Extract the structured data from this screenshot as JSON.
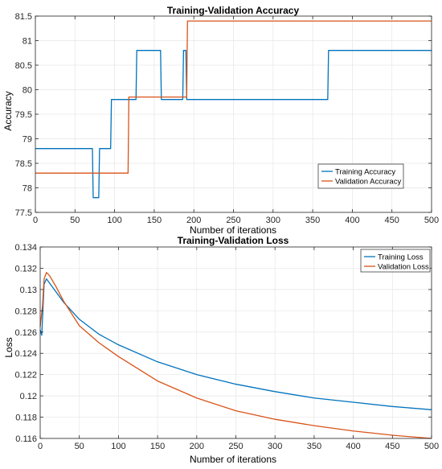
{
  "chart_data": [
    {
      "type": "line",
      "title": "Training-Validation Accuracy",
      "xlabel": "Number of iterations",
      "ylabel": "Accuracy",
      "xlim": [
        0,
        500
      ],
      "ylim": [
        77.5,
        81.5
      ],
      "xticks": [
        0,
        50,
        100,
        150,
        200,
        250,
        300,
        350,
        400,
        450,
        500
      ],
      "yticks": [
        77.5,
        78,
        78.5,
        79,
        79.5,
        80,
        80.5,
        81,
        81.5
      ],
      "ytick_labels": [
        "77.5",
        "78",
        "78.5",
        "79",
        "79.5",
        "80",
        "80.5",
        "81",
        "81.5"
      ],
      "grid": true,
      "legend_position": "lower-right",
      "series": [
        {
          "name": "Training Accuracy",
          "color": "#0072BD",
          "x": [
            0,
            72,
            73,
            80,
            81,
            95,
            96,
            127,
            128,
            158,
            159,
            186,
            187,
            190,
            191,
            369,
            370,
            500
          ],
          "y": [
            78.8,
            78.8,
            77.8,
            77.8,
            78.8,
            78.8,
            79.8,
            79.8,
            80.8,
            80.8,
            79.8,
            79.8,
            80.8,
            80.8,
            79.8,
            79.8,
            80.8,
            80.8
          ]
        },
        {
          "name": "Validation Accuracy",
          "color": "#D95319",
          "x": [
            0,
            117,
            118,
            191,
            192,
            500
          ],
          "y": [
            78.3,
            78.3,
            79.85,
            79.85,
            81.4,
            81.4
          ]
        }
      ]
    },
    {
      "type": "line",
      "title": "Training-Validation Loss",
      "xlabel": "Number of iterations",
      "ylabel": "Loss",
      "xlim": [
        0,
        500
      ],
      "ylim": [
        0.116,
        0.134
      ],
      "xticks": [
        0,
        50,
        100,
        150,
        200,
        250,
        300,
        350,
        400,
        450,
        500
      ],
      "yticks": [
        0.116,
        0.118,
        0.12,
        0.122,
        0.124,
        0.126,
        0.128,
        0.13,
        0.132,
        0.134
      ],
      "ytick_labels": [
        "0.116",
        "0.118",
        "0.12",
        "0.122",
        "0.124",
        "0.126",
        "0.128",
        "0.13",
        "0.132",
        "0.134"
      ],
      "grid": true,
      "legend_position": "top-right",
      "series": [
        {
          "name": "Training Loss",
          "color": "#0072BD",
          "x": [
            0,
            2,
            5,
            8,
            12,
            20,
            30,
            50,
            75,
            100,
            150,
            200,
            250,
            300,
            350,
            400,
            450,
            500
          ],
          "y": [
            0.1262,
            0.1257,
            0.1305,
            0.131,
            0.1306,
            0.1298,
            0.1288,
            0.1272,
            0.1258,
            0.1248,
            0.1232,
            0.122,
            0.1211,
            0.1204,
            0.1198,
            0.1194,
            0.119,
            0.1187
          ]
        },
        {
          "name": "Validation Loss",
          "color": "#D95319",
          "x": [
            0,
            3,
            5,
            8,
            12,
            20,
            30,
            50,
            75,
            100,
            150,
            200,
            250,
            300,
            350,
            400,
            450,
            500
          ],
          "y": [
            0.1265,
            0.1285,
            0.131,
            0.1316,
            0.1313,
            0.1303,
            0.1289,
            0.1266,
            0.125,
            0.1237,
            0.1214,
            0.1198,
            0.1186,
            0.1178,
            0.1172,
            0.1167,
            0.1163,
            0.116
          ]
        }
      ]
    }
  ]
}
